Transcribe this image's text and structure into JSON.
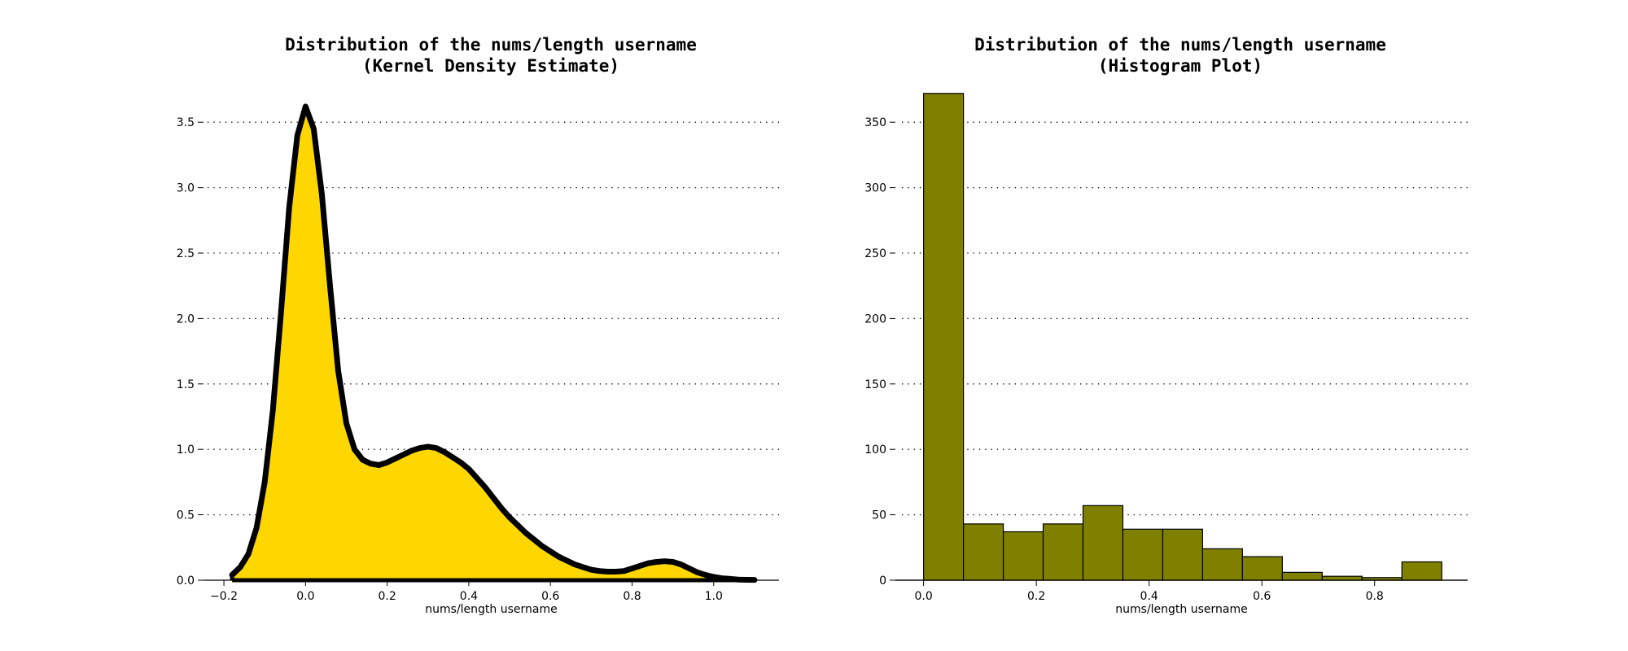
{
  "chart_data": [
    {
      "type": "area",
      "title": "Distribution of the nums/length username\n(Kernel Density Estimate)",
      "xlabel": "nums/length username",
      "ylabel": "",
      "xlim": [
        -0.25,
        1.16
      ],
      "ylim": [
        0,
        3.75
      ],
      "x_ticks": [
        -0.2,
        0.0,
        0.2,
        0.4,
        0.6,
        0.8,
        1.0
      ],
      "x_tick_labels": [
        "−0.2",
        "0.0",
        "0.2",
        "0.4",
        "0.6",
        "0.8",
        "1.0"
      ],
      "y_ticks": [
        0.0,
        0.5,
        1.0,
        1.5,
        2.0,
        2.5,
        3.0,
        3.5
      ],
      "y_tick_labels": [
        "0.0",
        "0.5",
        "1.0",
        "1.5",
        "2.0",
        "2.5",
        "3.0",
        "3.5"
      ],
      "grid": "horizontal-dotted",
      "fill_color": "#FFD700",
      "line_color": "#000000",
      "x": [
        -0.18,
        -0.16,
        -0.14,
        -0.12,
        -0.1,
        -0.08,
        -0.06,
        -0.04,
        -0.02,
        0.0,
        0.02,
        0.04,
        0.06,
        0.08,
        0.1,
        0.12,
        0.14,
        0.16,
        0.18,
        0.2,
        0.22,
        0.24,
        0.26,
        0.28,
        0.3,
        0.32,
        0.34,
        0.36,
        0.38,
        0.4,
        0.42,
        0.44,
        0.46,
        0.48,
        0.5,
        0.52,
        0.54,
        0.56,
        0.58,
        0.6,
        0.62,
        0.64,
        0.66,
        0.68,
        0.7,
        0.72,
        0.74,
        0.76,
        0.78,
        0.8,
        0.82,
        0.84,
        0.86,
        0.88,
        0.9,
        0.92,
        0.94,
        0.96,
        0.98,
        1.0,
        1.02,
        1.04,
        1.06,
        1.08,
        1.1
      ],
      "y": [
        0.04,
        0.1,
        0.2,
        0.4,
        0.75,
        1.3,
        2.05,
        2.85,
        3.4,
        3.62,
        3.45,
        2.95,
        2.25,
        1.6,
        1.2,
        1.0,
        0.92,
        0.89,
        0.88,
        0.9,
        0.93,
        0.96,
        0.99,
        1.01,
        1.02,
        1.01,
        0.98,
        0.94,
        0.9,
        0.85,
        0.78,
        0.71,
        0.63,
        0.55,
        0.48,
        0.42,
        0.36,
        0.31,
        0.26,
        0.22,
        0.18,
        0.15,
        0.12,
        0.1,
        0.08,
        0.07,
        0.065,
        0.065,
        0.07,
        0.09,
        0.11,
        0.13,
        0.14,
        0.145,
        0.14,
        0.12,
        0.09,
        0.06,
        0.04,
        0.025,
        0.015,
        0.01,
        0.005,
        0.003,
        0.002
      ]
    },
    {
      "type": "bar",
      "title": "Distribution of the nums/length username\n(Histogram Plot)",
      "xlabel": "nums/length username",
      "ylabel": "",
      "xlim": [
        -0.05,
        0.965
      ],
      "ylim": [
        0,
        375
      ],
      "x_ticks": [
        0.0,
        0.2,
        0.4,
        0.6,
        0.8
      ],
      "x_tick_labels": [
        "0.0",
        "0.2",
        "0.4",
        "0.6",
        "0.8"
      ],
      "y_ticks": [
        0,
        50,
        100,
        150,
        200,
        250,
        300,
        350
      ],
      "y_tick_labels": [
        "0",
        "50",
        "100",
        "150",
        "200",
        "250",
        "300",
        "350"
      ],
      "grid": "horizontal-dotted",
      "bar_color": "#808000",
      "edge_color": "#000000",
      "bin_edges": [
        0.0,
        0.0707,
        0.1414,
        0.2121,
        0.2828,
        0.3535,
        0.4242,
        0.4949,
        0.5656,
        0.6363,
        0.707,
        0.7777,
        0.8484,
        0.9191
      ],
      "values": [
        372,
        43,
        37,
        43,
        57,
        39,
        39,
        24,
        18,
        6,
        3,
        2,
        14
      ]
    }
  ]
}
